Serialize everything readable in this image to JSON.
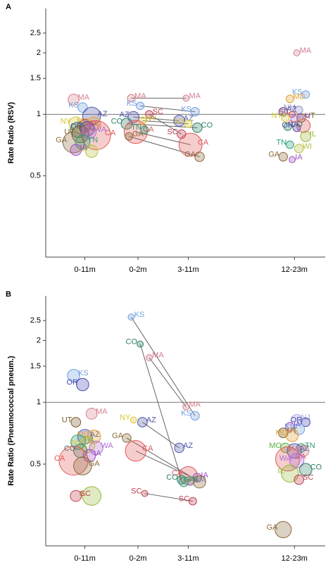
{
  "chart_data": [
    {
      "type": "scatter",
      "panel": "A",
      "y_label": "Rate Ratio (RSV)",
      "log_y": true,
      "ylim": [
        0.2,
        3.3
      ],
      "yticks": [
        0.5,
        1,
        1.5,
        2,
        2.5
      ],
      "reference_line": 1,
      "categories": [
        "0-11m",
        "0-2m",
        "3-11m",
        "12-23m"
      ],
      "connect": [
        1,
        2
      ],
      "state_colors": {
        "MA": "#d4808f",
        "KS": "#6f9fe0",
        "AZ": "#4f55a8",
        "NY": "#d8c830",
        "SC": "#c0404f",
        "MD": "#e0a030",
        "CO": "#2f8068",
        "CA": "#e05858",
        "UT": "#7a5a2a",
        "WA": "#b070d8",
        "GA": "#8b6a3a",
        "TN": "#2fa078",
        "IA": "#a050c0",
        "WI": "#b8c040",
        "OR": "#4a4ab0",
        "NM": "#9090c8",
        "IL": "#98b838",
        "MO": "#58b040",
        "NJ": "#a8a8e0"
      },
      "groups": [
        {
          "states": [
            "MA",
            "KS",
            "AZ",
            "NY",
            "SC",
            "MD",
            "CO",
            "OR",
            "CA",
            "UT",
            "WA",
            "GA",
            "TN",
            "WI",
            "IA"
          ],
          "values": [
            1.18,
            1.08,
            0.98,
            0.9,
            0.88,
            0.9,
            0.84,
            0.85,
            0.79,
            0.8,
            0.82,
            0.73,
            0.73,
            0.66,
            0.67
          ],
          "sizes": [
            6,
            4,
            20,
            10,
            8,
            10,
            14,
            12,
            60,
            18,
            10,
            30,
            12,
            8,
            6
          ]
        },
        {
          "states": [
            "MA",
            "KS",
            "SC",
            "AZ",
            "NY",
            "CO",
            "CA",
            "TN",
            "GA"
          ],
          "values": [
            1.2,
            1.1,
            1.0,
            0.97,
            0.93,
            0.9,
            0.82,
            0.84,
            0.78
          ],
          "sizes": [
            2,
            2,
            2,
            6,
            2,
            6,
            36,
            2,
            2
          ]
        },
        {
          "states": [
            "MA",
            "KS",
            "AZ",
            "NY",
            "CO",
            "SC",
            "CA",
            "GA"
          ],
          "values": [
            1.2,
            1.03,
            0.93,
            0.9,
            0.86,
            0.8,
            0.71,
            0.62
          ],
          "sizes": [
            1,
            3,
            6,
            2,
            4,
            3,
            36,
            4
          ]
        },
        {
          "states": [
            "MA",
            "KS",
            "MD",
            "NM",
            "AZ",
            "SC",
            "UT",
            "NY",
            "WA",
            "CA",
            "CO",
            "OR",
            "IL",
            "TN",
            "WI",
            "GA",
            "IA"
          ],
          "values": [
            2.0,
            1.25,
            1.19,
            1.05,
            1.03,
            1.0,
            0.96,
            0.96,
            0.95,
            0.88,
            0.87,
            0.86,
            0.78,
            0.71,
            0.68,
            0.62,
            0.6
          ],
          "sizes": [
            1,
            2,
            2,
            2,
            3,
            1,
            3,
            2,
            2,
            10,
            2,
            2,
            5,
            2,
            3,
            3,
            1
          ]
        }
      ]
    },
    {
      "type": "scatter",
      "panel": "B",
      "y_label": "Rate Ratio (Pneumococcal pneum.)",
      "log_y": true,
      "ylim": [
        0.2,
        3.3
      ],
      "yticks": [
        0.5,
        1,
        1.5,
        2,
        2.5
      ],
      "reference_line": 1,
      "categories": [
        "0-11m",
        "0-2m",
        "3-11m",
        "12-23m"
      ],
      "connect": [
        1,
        2
      ],
      "state_colors": {
        "MA": "#d4808f",
        "KS": "#6f9fe0",
        "AZ": "#4f55a8",
        "NY": "#d8c830",
        "SC": "#c0404f",
        "MD": "#e0a030",
        "CO": "#2f8068",
        "CA": "#e05858",
        "UT": "#7a5a2a",
        "WA": "#b070d8",
        "GA": "#8b6a3a",
        "TN": "#2fa078",
        "IA": "#a050c0",
        "WI": "#b8c040",
        "OR": "#4a4ab0",
        "NM": "#9090c8",
        "IL": "#98b838",
        "MO": "#58b040",
        "NJ": "#a8a8e0"
      },
      "groups": [
        {
          "states": [
            "KS",
            "OR",
            "MA",
            "UT",
            "AZ",
            "MD",
            "TN",
            "NY",
            "WA",
            "CO",
            "IA",
            "CA",
            "GA",
            "IL",
            "SC"
          ],
          "values": [
            1.35,
            1.22,
            0.88,
            0.8,
            0.68,
            0.68,
            0.64,
            0.62,
            0.6,
            0.58,
            0.55,
            0.52,
            0.49,
            0.35,
            0.35
          ],
          "sizes": [
            8,
            8,
            6,
            4,
            12,
            10,
            12,
            14,
            10,
            10,
            8,
            60,
            20,
            22,
            6
          ]
        },
        {
          "states": [
            "KS",
            "CO",
            "MA",
            "NY",
            "AZ",
            "GA",
            "CA",
            "SC"
          ],
          "values": [
            2.6,
            1.92,
            1.65,
            0.82,
            0.8,
            0.67,
            0.58,
            0.36
          ],
          "sizes": [
            1,
            1,
            1,
            1,
            4,
            3,
            28,
            1
          ]
        },
        {
          "states": [
            "MA",
            "KS",
            "AZ",
            "CA",
            "IA",
            "CO",
            "NM",
            "GA",
            "TN",
            "SC"
          ],
          "values": [
            0.95,
            0.86,
            0.6,
            0.44,
            0.43,
            0.42,
            0.41,
            0.41,
            0.41,
            0.33
          ],
          "sizes": [
            1,
            3,
            4,
            20,
            3,
            3,
            2,
            8,
            4,
            2
          ]
        },
        {
          "states": [
            "NJ",
            "OR",
            "IA",
            "KS",
            "UT",
            "MD",
            "TN",
            "MO",
            "AZ",
            "MA",
            "CA",
            "WA",
            "CO",
            "IL",
            "SC",
            "GA"
          ],
          "values": [
            0.82,
            0.8,
            0.76,
            0.74,
            0.71,
            0.69,
            0.6,
            0.6,
            0.58,
            0.58,
            0.53,
            0.52,
            0.47,
            0.45,
            0.42,
            0.24
          ],
          "sizes": [
            6,
            3,
            3,
            6,
            4,
            8,
            3,
            4,
            12,
            6,
            40,
            12,
            8,
            18,
            4,
            16
          ]
        }
      ]
    }
  ]
}
